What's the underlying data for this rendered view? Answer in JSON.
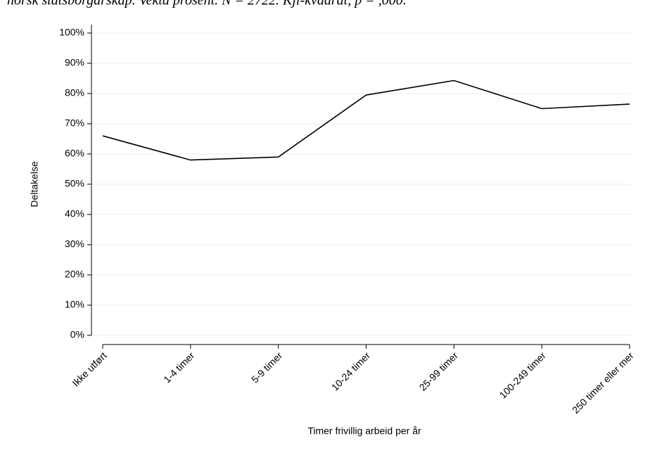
{
  "caption": "norsk statsborgarskap. Vekta prosent. N = 2722. Kji-kvadrat, p = ,000.",
  "chart_data": {
    "type": "line",
    "x_label": "Timer frivillig arbeid per år",
    "y_label": "Deltakelse",
    "categories": [
      "Ikke utført",
      "1-4 timer",
      "5-9 timer",
      "10-24 timer",
      "25-99 timer",
      "100-249 timer",
      "250 timer eller mer"
    ],
    "series": [
      {
        "color": "#000000",
        "values": [
          66,
          58,
          59,
          79.5,
          84.3,
          75,
          76.5
        ]
      }
    ],
    "ylim": [
      0,
      100
    ],
    "yticks": [
      {
        "value": 0,
        "label": "0%"
      },
      {
        "value": 10,
        "label": "10%"
      },
      {
        "value": 20,
        "label": "20%"
      },
      {
        "value": 30,
        "label": "30%"
      },
      {
        "value": 40,
        "label": "40%"
      },
      {
        "value": 50,
        "label": "50%"
      },
      {
        "value": 60,
        "label": "60%"
      },
      {
        "value": 70,
        "label": "70%"
      },
      {
        "value": 80,
        "label": "80%"
      },
      {
        "value": 90,
        "label": "90%"
      },
      {
        "value": 100,
        "label": "100%"
      }
    ],
    "grid": true
  }
}
